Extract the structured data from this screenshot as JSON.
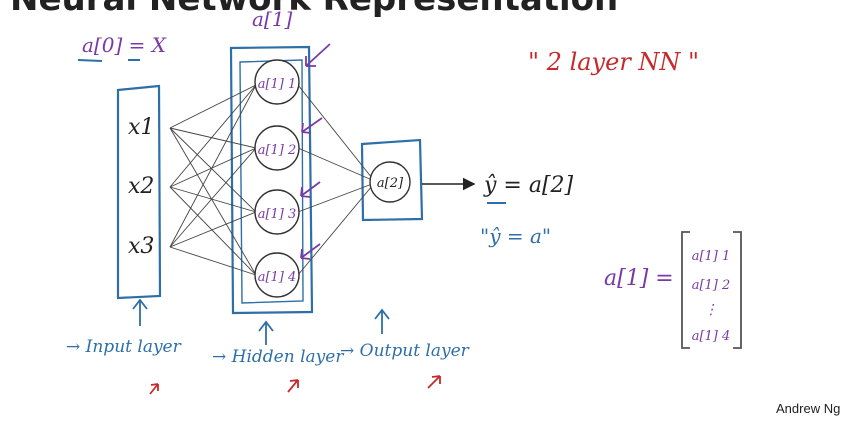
{
  "title": "Neural Network Representation",
  "annotations": {
    "a0_eq_x": "a[0] = X",
    "a1_label": "a[1]",
    "two_layer_nn": "\" 2 layer NN \"",
    "yhat_eq": "ŷ = a[2]",
    "yhat_alias": "\"ŷ = a\"",
    "a1_vector_eq": "a[1] ="
  },
  "inputs": [
    "x1",
    "x2",
    "x3"
  ],
  "hidden_units": [
    "a[1] 1",
    "a[1] 2",
    "a[1] 3",
    "a[1] 4"
  ],
  "output_unit": "a[2]",
  "vector_entries": [
    "a[1] 1",
    "a[1] 2",
    "⋮",
    "a[1] 4"
  ],
  "layer_labels": {
    "input": "→ Input layer",
    "hidden": "→ Hidden layer",
    "output": "→ Output layer"
  },
  "credit": "Andrew Ng",
  "colors": {
    "blue_ink": "#2e6fa8",
    "purple_ink": "#7a3aa6",
    "red_ink": "#c62a2a",
    "black_ink": "#222222"
  }
}
